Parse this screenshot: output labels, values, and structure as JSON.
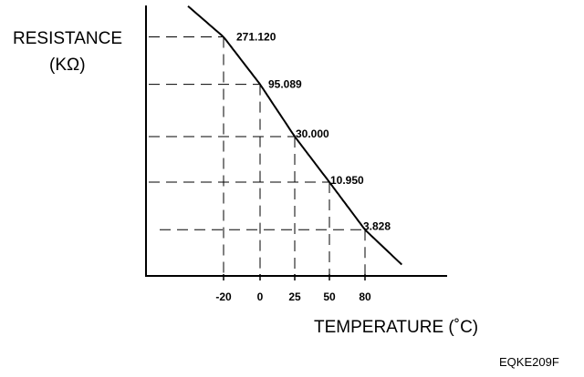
{
  "chart_data": {
    "type": "line",
    "ylabel_line1": "RESISTANCE",
    "ylabel_line2": "(KΩ)",
    "xlabel": "TEMPERATURE (˚C)",
    "figure_code": "EQKE209F",
    "x_tick_labels": [
      "-20",
      "0",
      "25",
      "50",
      "80"
    ],
    "x": [
      -20,
      0,
      25,
      50,
      80
    ],
    "values": [
      271.12,
      95.089,
      30.0,
      10.95,
      3.828
    ],
    "value_labels": [
      "271.120",
      "95.089",
      "30.000",
      "10.950",
      "3.828"
    ],
    "grid": "dashed reference lines at marked points"
  }
}
